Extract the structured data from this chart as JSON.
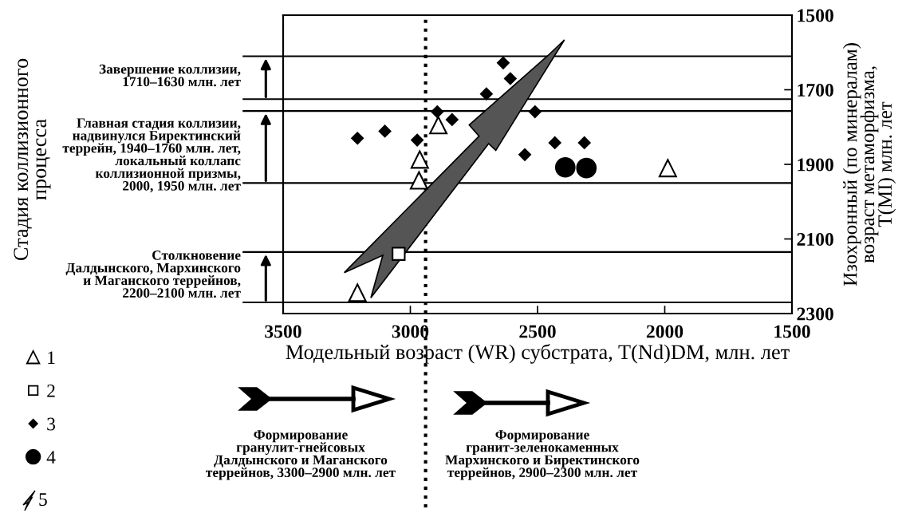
{
  "chart_data": {
    "type": "scatter",
    "xlabel": "Модельный возраст (WR) субстрата, T(Nd)DM, млн. лет",
    "ylabel": "Изохронный (по минералам)\nвозраст метаморфизма,\nT(MI) млн. лет",
    "xlim": [
      3500,
      1500
    ],
    "xticks": [
      3500,
      3000,
      2500,
      2000,
      1500
    ],
    "ylim": [
      2300,
      1500
    ],
    "yticks": [
      1500,
      1700,
      1900,
      2100,
      2300
    ],
    "grid": false,
    "legend": "bottom left",
    "series": [
      {
        "name": "1",
        "color": "#000000",
        "marker": "triangle",
        "x": [
          2890,
          2963,
          2966,
          3208,
          1988
        ],
        "values": [
          1795,
          1887,
          1943,
          2244,
          1910
        ]
      },
      {
        "name": "2",
        "color": "#000000",
        "marker": "square",
        "x": [
          3046
        ],
        "values": [
          2140
        ]
      },
      {
        "name": "3",
        "color": "#000000",
        "marker": "diamond",
        "x": [
          3208,
          3100,
          2973,
          2894,
          2836,
          2701,
          2635,
          2607,
          2510,
          2550,
          2432,
          2316
        ],
        "values": [
          1830,
          1811,
          1835,
          1759,
          1780,
          1711,
          1628,
          1670,
          1759,
          1874,
          1842,
          1842
        ]
      },
      {
        "name": "4",
        "color": "#000000",
        "marker": "circle",
        "x": [
          2391,
          2308
        ],
        "values": [
          1908,
          1910
        ]
      }
    ],
    "ref_lines": [
      {
        "axis": "y",
        "value": 1610,
        "color": "#000000",
        "line_style": "solid"
      },
      {
        "axis": "y",
        "value": 1725,
        "color": "#000000",
        "line_style": "solid"
      },
      {
        "axis": "y",
        "value": 1757,
        "color": "#000000",
        "line_style": "solid"
      },
      {
        "axis": "y",
        "value": 1950,
        "color": "#000000",
        "line_style": "solid"
      },
      {
        "axis": "y",
        "value": 2135,
        "color": "#000000",
        "line_style": "solid"
      },
      {
        "axis": "y",
        "value": 2270,
        "color": "#000000",
        "line_style": "solid"
      },
      {
        "axis": "x",
        "value": 2940,
        "color": "#000000",
        "line_style": "dotted"
      }
    ],
    "annotations": [
      "Стадия коллизионного\nпроцесса",
      "Завершение коллизии,\n1710–1630 млн. лет",
      "Главная стадия коллизии,\nнадвинулся Биректинский\nтеррейн, 1940–1760 млн. лет,\nлокальный коллапс\nколлизионной призмы,\n2000, 1950 млн. лет",
      "Столкновение\nДалдынского, Мархинского\nи Маганского террейнов,\n2200–2100 млн. лет",
      "Формирование\nгранулит-гнейсовых\nДалдынского и Маганского\nтеррейнов, 3300–2900 млн. лет",
      "Формирование\nгранит-зеленокаменных\nМархинского и Биректинского\nтеррейнов, 2900–2300 млн. лет",
      "5"
    ]
  }
}
